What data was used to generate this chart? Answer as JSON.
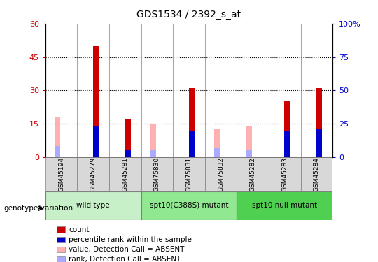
{
  "title": "GDS1534 / 2392_s_at",
  "samples": [
    "GSM45194",
    "GSM45279",
    "GSM45281",
    "GSM75830",
    "GSM75831",
    "GSM75832",
    "GSM45282",
    "GSM45283",
    "GSM45284"
  ],
  "count_values": [
    0,
    50,
    17,
    0,
    31,
    0,
    0,
    25,
    31
  ],
  "percentile_values": [
    0,
    14,
    3,
    0,
    12,
    0,
    0,
    12,
    13
  ],
  "absent_value_values": [
    18,
    0,
    0,
    15,
    0,
    13,
    14,
    0,
    0
  ],
  "absent_rank_values": [
    5,
    0,
    0,
    3,
    0,
    4,
    3,
    0,
    0
  ],
  "groups": [
    {
      "label": "wild type",
      "start": 0,
      "end": 3,
      "color": "#c8f0c8"
    },
    {
      "label": "spt10(C388S) mutant",
      "start": 3,
      "end": 6,
      "color": "#90e890"
    },
    {
      "label": "spt10 null mutant",
      "start": 6,
      "end": 9,
      "color": "#50d050"
    }
  ],
  "ylim_left": [
    0,
    60
  ],
  "ylim_right": [
    0,
    100
  ],
  "yticks_left": [
    0,
    15,
    30,
    45,
    60
  ],
  "yticks_right": [
    0,
    25,
    50,
    75,
    100
  ],
  "count_color": "#cc0000",
  "percentile_color": "#0000cc",
  "absent_value_color": "#ffb0b0",
  "absent_rank_color": "#aaaaff",
  "legend_items": [
    {
      "label": "count",
      "color": "#cc0000"
    },
    {
      "label": "percentile rank within the sample",
      "color": "#0000cc"
    },
    {
      "label": "value, Detection Call = ABSENT",
      "color": "#ffb0b0"
    },
    {
      "label": "rank, Detection Call = ABSENT",
      "color": "#aaaaff"
    }
  ]
}
